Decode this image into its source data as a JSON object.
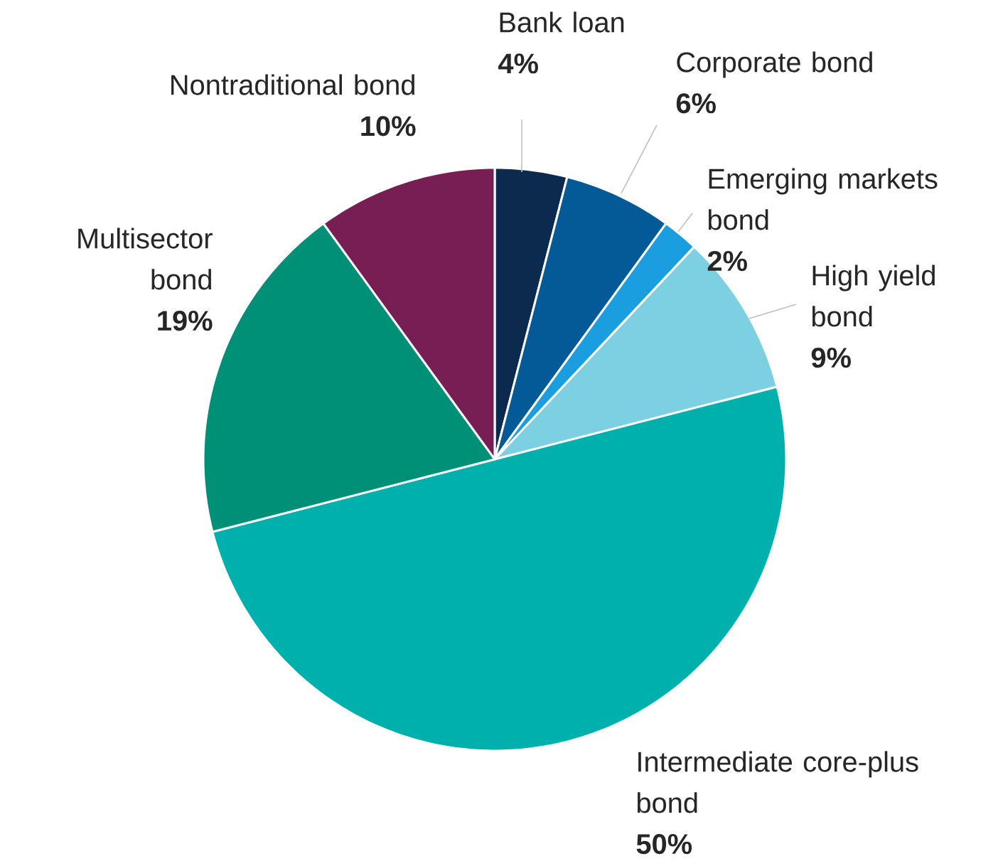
{
  "chart_data": {
    "type": "pie",
    "categories": [
      "Bank loan",
      "Corporate bond",
      "Emerging markets bond",
      "High yield bond",
      "Intermediate core-plus bond",
      "Multisector bond",
      "Nontraditional bond"
    ],
    "values": [
      4,
      6,
      2,
      9,
      50,
      19,
      10
    ],
    "colors": [
      "#0b2a4e",
      "#045a97",
      "#1a9ee0",
      "#7dcfe2",
      "#00b0ac",
      "#008f77",
      "#771f55"
    ],
    "value_labels": [
      "4%",
      "6%",
      "2%",
      "9%",
      "50%",
      "19%",
      "10%"
    ]
  }
}
